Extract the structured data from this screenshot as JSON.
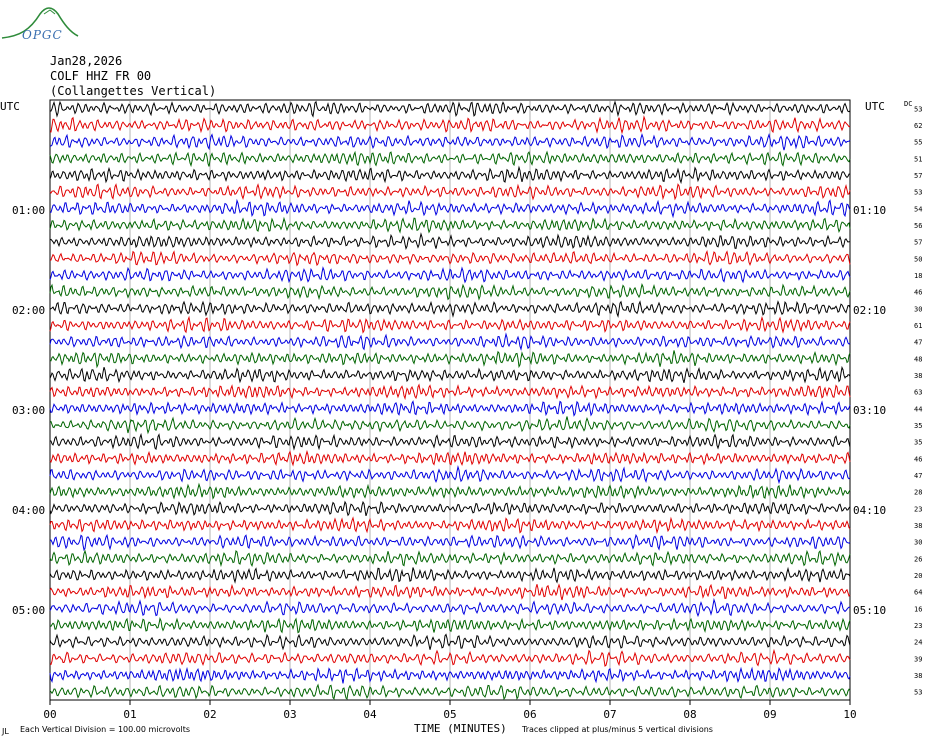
{
  "logo": {
    "text": "OPGC"
  },
  "header": {
    "date": "Jan28,2026",
    "station": "COLF HHZ FR 00",
    "location": "(Collangettes Vertical)"
  },
  "footer": {
    "left_mark": "JL",
    "scale_note": "Each Vertical Division =  100.00 microvolts",
    "clip_note": "Traces clipped at plus/minus 5 vertical divisions"
  },
  "colors": {
    "cycle": [
      "#000000",
      "#e00000",
      "#0000e0",
      "#006400"
    ],
    "grid": "#808080"
  },
  "chart_data": {
    "type": "line",
    "title": "",
    "xlabel": "TIME (MINUTES)",
    "xlim": [
      0,
      10
    ],
    "x_ticks": [
      "00",
      "01",
      "02",
      "03",
      "04",
      "05",
      "06",
      "07",
      "08",
      "09",
      "10"
    ],
    "left_axis_label": "UTC",
    "right_axis_label": "UTC",
    "dc_label": "DC",
    "left_time_labels": [
      {
        "row": 6,
        "label": "01:00"
      },
      {
        "row": 12,
        "label": "02:00"
      },
      {
        "row": 18,
        "label": "03:00"
      },
      {
        "row": 24,
        "label": "04:00"
      },
      {
        "row": 30,
        "label": "05:00"
      }
    ],
    "right_time_labels": [
      {
        "row": 6,
        "label": "01:10"
      },
      {
        "row": 12,
        "label": "02:10"
      },
      {
        "row": 18,
        "label": "03:10"
      },
      {
        "row": 24,
        "label": "04:10"
      },
      {
        "row": 30,
        "label": "05:10"
      }
    ],
    "dc_offsets": [
      "53",
      "62",
      "55",
      "51",
      "57",
      "53",
      "54",
      "56",
      "57",
      "50",
      "18",
      "46",
      "30",
      "61",
      "47",
      "48",
      "38",
      "63",
      "44",
      "35",
      "35",
      "46",
      "47",
      "28",
      "23",
      "38",
      "30",
      "26",
      "20",
      "64",
      "16",
      "23",
      "24",
      "39",
      "38",
      "53"
    ],
    "trace_rows": 36,
    "clipping_divisions": 5
  }
}
